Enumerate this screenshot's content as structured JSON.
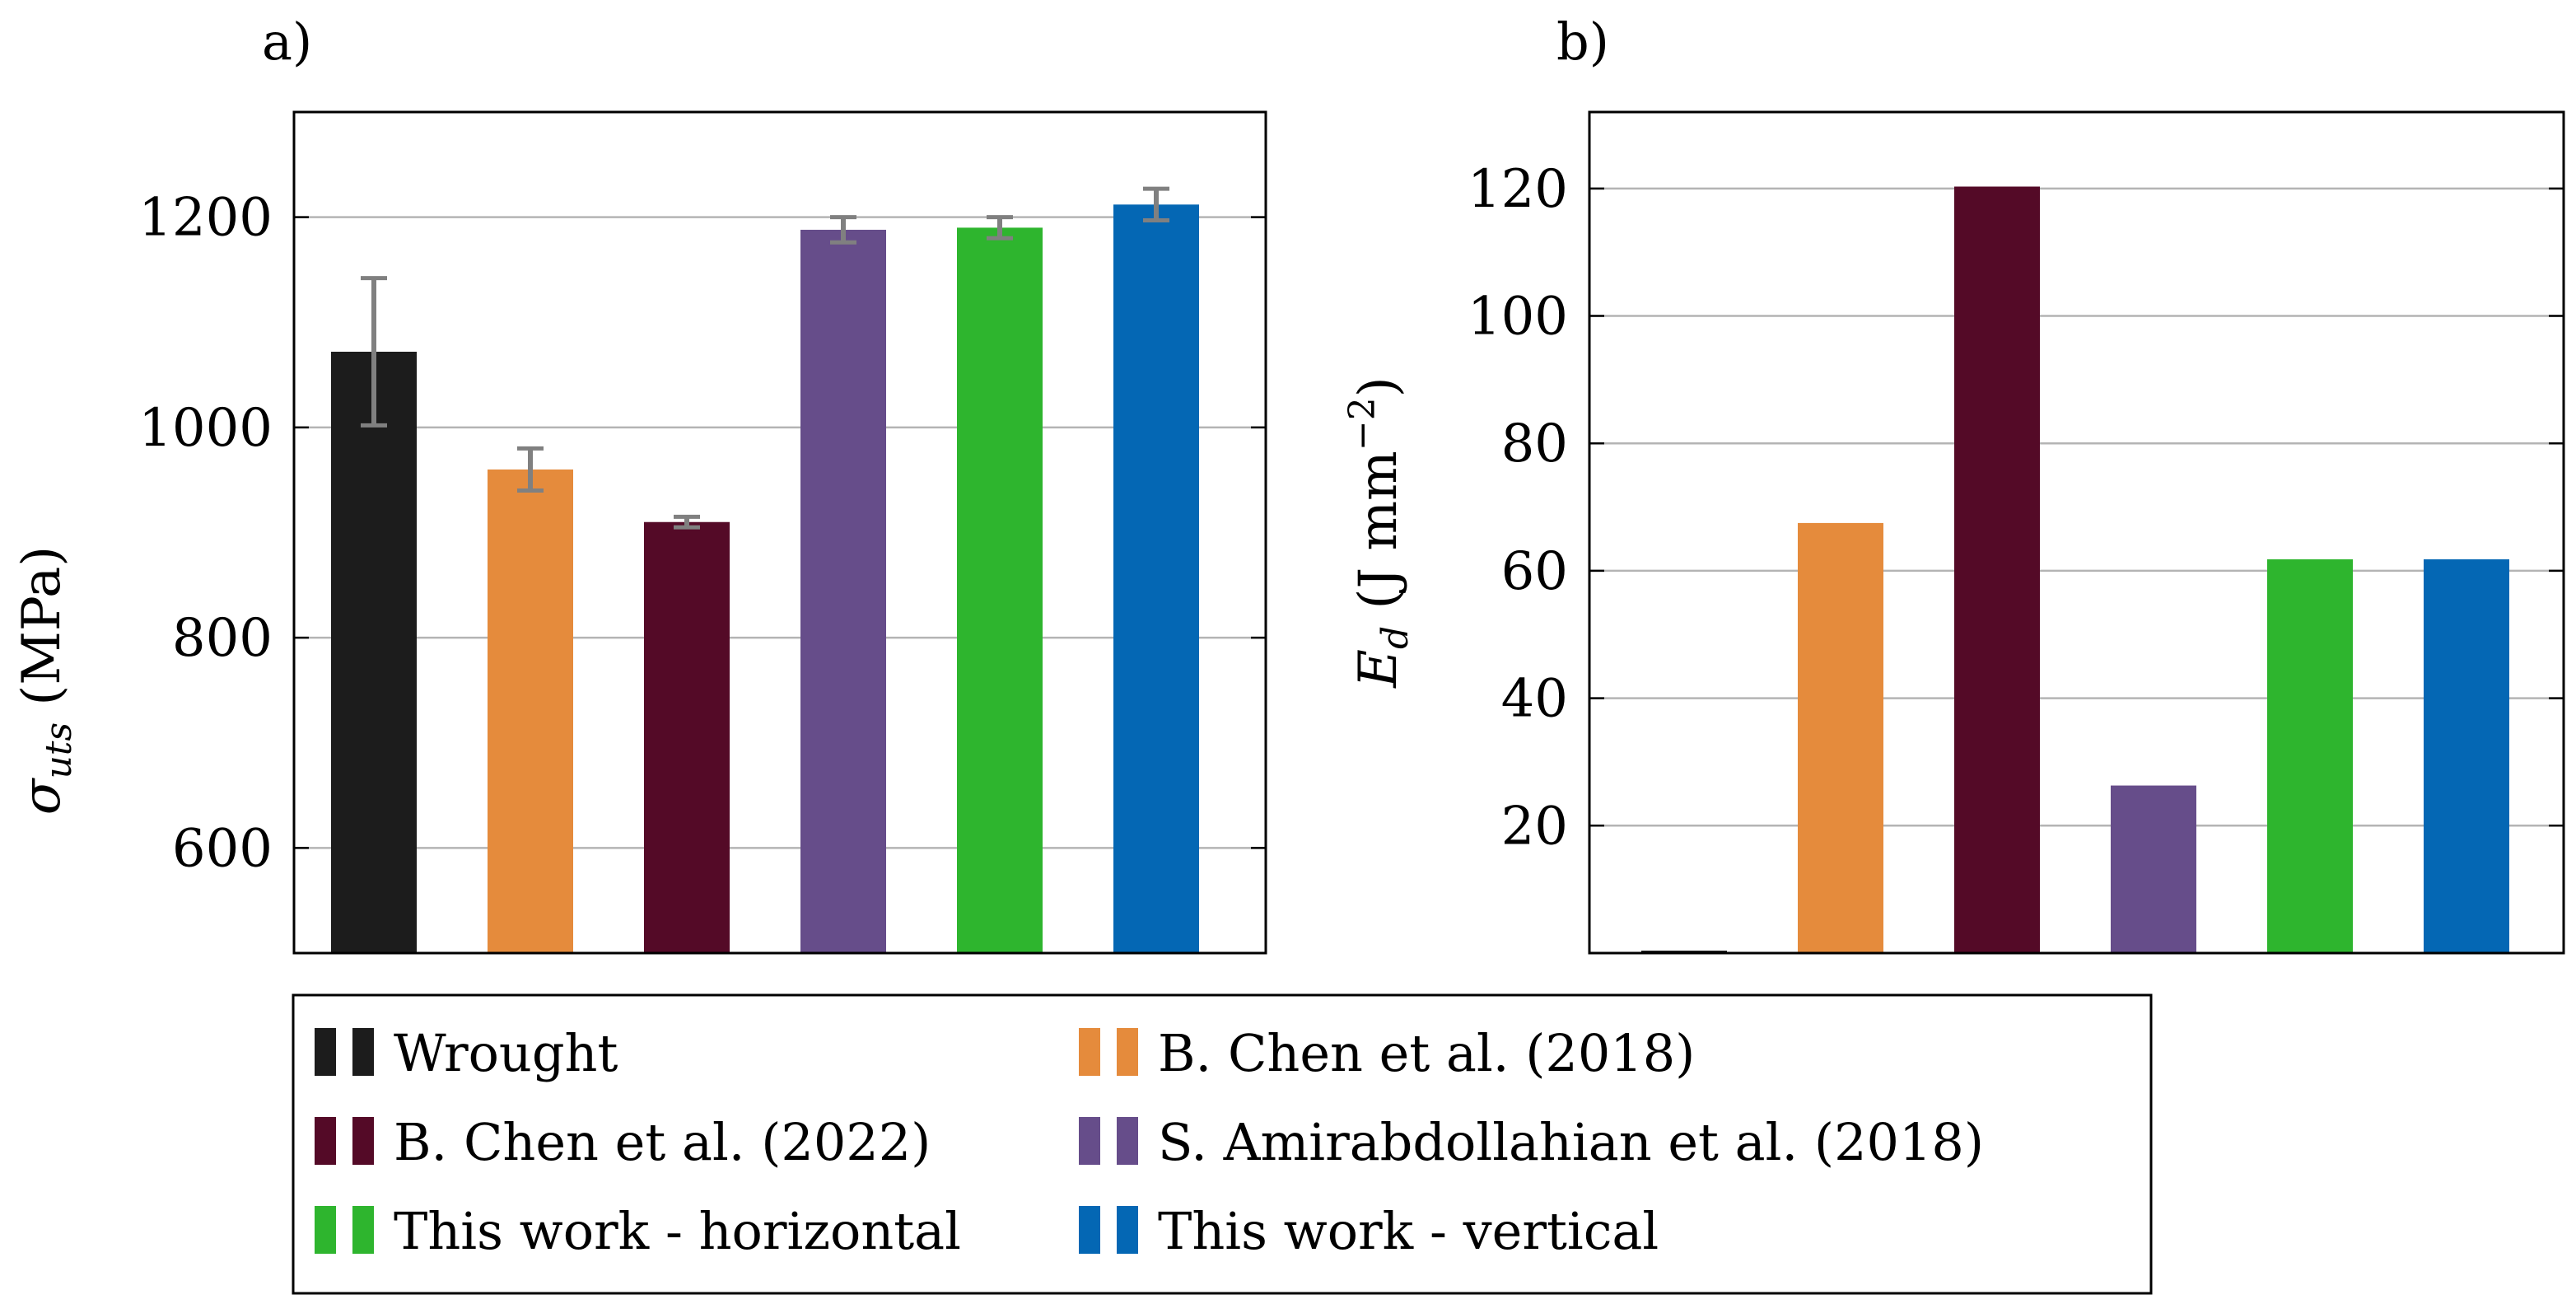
{
  "chart_data": [
    {
      "type": "bar",
      "panel_label": "a)",
      "title": "",
      "xlabel": "",
      "ylabel_symbol": "σ",
      "ylabel_subscript": "uts",
      "ylabel_unit": " (MPa)",
      "ylim": [
        500,
        1300
      ],
      "yticks": [
        600,
        800,
        1000,
        1200
      ],
      "grid": true,
      "series": [
        {
          "name": "Wrought",
          "color": "#1c1c1c",
          "value": 1072,
          "error": 70
        },
        {
          "name": "B. Chen et al. (2018)",
          "color": "#e58b3c",
          "value": 960,
          "error": 20
        },
        {
          "name": "B. Chen et al. (2022)",
          "color": "#540a27",
          "value": 910,
          "error": 5
        },
        {
          "name": "S. Amirabdollahian et al. (2018)",
          "color": "#664d8a",
          "value": 1188,
          "error": 12
        },
        {
          "name": "This work - horizontal",
          "color": "#2eb52e",
          "value": 1190,
          "error": 10
        },
        {
          "name": "This work - vertical",
          "color": "#0467b4",
          "value": 1212,
          "error": 15
        }
      ]
    },
    {
      "type": "bar",
      "panel_label": "b)",
      "title": "",
      "xlabel": "",
      "ylabel_symbol": "E",
      "ylabel_subscript": "d",
      "ylabel_unit": " (J mm",
      "ylabel_exponent": "−2",
      "ylabel_close": ")",
      "ylim": [
        0,
        132
      ],
      "yticks": [
        20,
        40,
        60,
        80,
        100,
        120
      ],
      "grid": true,
      "series": [
        {
          "name": "Wrought",
          "color": "#1c1c1c",
          "value": 0
        },
        {
          "name": "B. Chen et al. (2018)",
          "color": "#e58b3c",
          "value": 67.5
        },
        {
          "name": "B. Chen et al. (2022)",
          "color": "#540a27",
          "value": 120.3
        },
        {
          "name": "S. Amirabdollahian et al. (2018)",
          "color": "#664d8a",
          "value": 26.3
        },
        {
          "name": "This work - horizontal",
          "color": "#2eb52e",
          "value": 61.8
        },
        {
          "name": "This work - vertical",
          "color": "#0467b4",
          "value": 61.8
        }
      ]
    }
  ],
  "legend": {
    "entries": [
      {
        "label": "Wrought",
        "color": "#1c1c1c"
      },
      {
        "label": "B. Chen et al. (2018)",
        "color": "#e58b3c"
      },
      {
        "label": "B. Chen et al. (2022)",
        "color": "#540a27"
      },
      {
        "label": "S. Amirabdollahian et al. (2018)",
        "color": "#664d8a"
      },
      {
        "label": "This work - horizontal",
        "color": "#2eb52e"
      },
      {
        "label": "This work - vertical",
        "color": "#0467b4"
      }
    ]
  }
}
